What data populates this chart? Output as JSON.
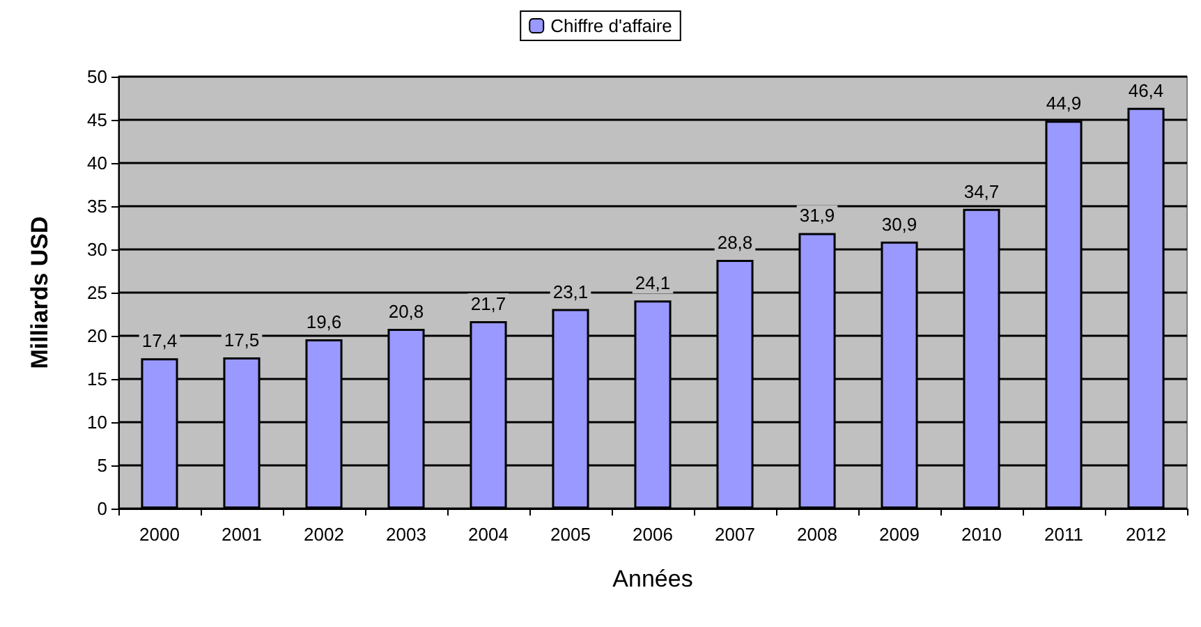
{
  "chart_data": {
    "type": "bar",
    "xlabel": "Années",
    "ylabel": "Milliards USD",
    "categories": [
      "2000",
      "2001",
      "2002",
      "2003",
      "2004",
      "2005",
      "2006",
      "2007",
      "2008",
      "2009",
      "2010",
      "2011",
      "2012"
    ],
    "series": [
      {
        "name": "Chiffre d'affaire",
        "color": "#9999ff",
        "values": [
          17.4,
          17.5,
          19.6,
          20.8,
          21.7,
          23.1,
          24.1,
          28.8,
          31.9,
          30.9,
          34.7,
          44.9,
          46.4
        ],
        "value_labels": [
          "17,4",
          "17,5",
          "19,6",
          "20,8",
          "21,7",
          "23,1",
          "24,1",
          "28,8",
          "31,9",
          "30,9",
          "34,7",
          "44,9",
          "46,4"
        ]
      }
    ],
    "ylim": [
      0,
      50
    ],
    "yticks": [
      0,
      5,
      10,
      15,
      20,
      25,
      30,
      35,
      40,
      45,
      50
    ],
    "grid": "y",
    "legend": "top"
  }
}
